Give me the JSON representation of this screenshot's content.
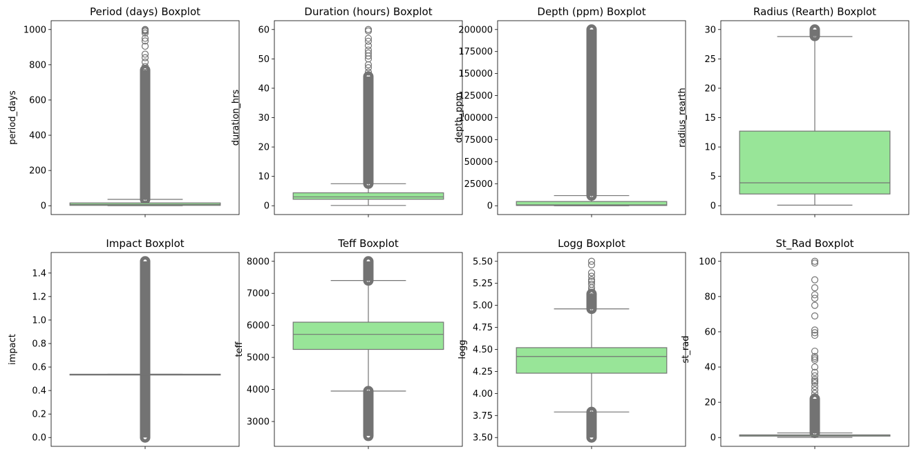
{
  "chart_data": [
    {
      "type": "boxplot",
      "title": "Period (days) Boxplot",
      "ylabel": "period_days",
      "ylim": [
        -50,
        1050
      ],
      "yticks": [
        0,
        200,
        400,
        600,
        800,
        1000
      ],
      "yticklabels": [
        "0",
        "200",
        "400",
        "600",
        "800",
        "1000"
      ],
      "box": {
        "whisker_low": 0.2,
        "q1": 2,
        "median": 7,
        "q3": 16,
        "whisker_high": 36
      },
      "outlier_band": [
        36,
        770
      ],
      "outliers": [
        790,
        815,
        840,
        860,
        905,
        935,
        950,
        980,
        990,
        995,
        1000
      ]
    },
    {
      "type": "boxplot",
      "title": "Duration (hours) Boxplot",
      "ylabel": "duration_hrs",
      "ylim": [
        -3,
        63
      ],
      "yticks": [
        0,
        10,
        20,
        30,
        40,
        50,
        60
      ],
      "yticklabels": [
        "0",
        "10",
        "20",
        "30",
        "40",
        "50",
        "60"
      ],
      "box": {
        "whisker_low": 0.1,
        "q1": 2.2,
        "median": 3.0,
        "q3": 4.4,
        "whisker_high": 7.5
      },
      "outlier_band": [
        7.5,
        44
      ],
      "outliers": [
        45.5,
        47,
        48,
        50,
        51,
        52,
        53,
        54.5,
        56,
        57,
        59.5,
        60
      ]
    },
    {
      "type": "boxplot",
      "title": "Depth (ppm) Boxplot",
      "ylabel": "depth_ppm",
      "ylim": [
        -10000,
        210000
      ],
      "yticks": [
        0,
        25000,
        50000,
        75000,
        100000,
        125000,
        150000,
        175000,
        200000
      ],
      "yticklabels": [
        "0",
        "25000",
        "50000",
        "75000",
        "100000",
        "125000",
        "150000",
        "175000",
        "200000"
      ],
      "box": {
        "whisker_low": 0,
        "q1": 300,
        "median": 1000,
        "q3": 4800,
        "whisker_high": 11500
      },
      "outlier_band": [
        11500,
        200000
      ],
      "outliers": []
    },
    {
      "type": "boxplot",
      "title": "Radius (Rearth) Boxplot",
      "ylabel": "radius_rearth",
      "ylim": [
        -1.5,
        31.5
      ],
      "yticks": [
        0,
        5,
        10,
        15,
        20,
        25,
        30
      ],
      "yticklabels": [
        "0",
        "5",
        "10",
        "15",
        "20",
        "25",
        "30"
      ],
      "box": {
        "whisker_low": 0.1,
        "q1": 2.0,
        "median": 3.9,
        "q3": 12.7,
        "whisker_high": 28.8
      },
      "outlier_band": [
        28.9,
        30
      ],
      "outliers": []
    },
    {
      "type": "boxplot",
      "title": "Impact Boxplot",
      "ylabel": "impact",
      "ylim": [
        -0.075,
        1.575
      ],
      "yticks": [
        0,
        0.2,
        0.4,
        0.6,
        0.8,
        1.0,
        1.2,
        1.4
      ],
      "yticklabels": [
        "0.0",
        "0.2",
        "0.4",
        "0.6",
        "0.8",
        "1.0",
        "1.2",
        "1.4"
      ],
      "box": {
        "whisker_low": 0.537,
        "q1": 0.537,
        "median": 0.537,
        "q3": 0.539,
        "whisker_high": 0.539
      },
      "outlier_band": [
        0,
        1.5
      ],
      "outliers": []
    },
    {
      "type": "boxplot",
      "title": "Teff Boxplot",
      "ylabel": "teff",
      "ylim": [
        2225,
        8275
      ],
      "yticks": [
        3000,
        4000,
        5000,
        6000,
        7000,
        8000
      ],
      "yticklabels": [
        "3000",
        "4000",
        "5000",
        "6000",
        "7000",
        "8000"
      ],
      "box": {
        "whisker_low": 3950,
        "q1": 5250,
        "median": 5720,
        "q3": 6100,
        "whisker_high": 7400
      },
      "outlier_band": [
        2550,
        3950
      ],
      "outlier_band_upper": [
        7400,
        8000
      ],
      "outliers": []
    },
    {
      "type": "boxplot",
      "title": "Logg Boxplot",
      "ylabel": "logg",
      "ylim": [
        3.4,
        5.6
      ],
      "yticks": [
        3.5,
        3.75,
        4.0,
        4.25,
        4.5,
        4.75,
        5.0,
        5.25,
        5.5
      ],
      "yticklabels": [
        "3.50",
        "3.75",
        "4.00",
        "4.25",
        "4.50",
        "4.75",
        "5.00",
        "5.25",
        "5.50"
      ],
      "box": {
        "whisker_low": 3.79,
        "q1": 4.23,
        "median": 4.42,
        "q3": 4.52,
        "whisker_high": 4.96
      },
      "outlier_band": [
        3.5,
        3.79
      ],
      "outlier_band_upper": [
        4.96,
        5.13
      ],
      "outliers": [
        5.17,
        5.2,
        5.24,
        5.27,
        5.29,
        5.33,
        5.37,
        5.46,
        5.5
      ]
    },
    {
      "type": "boxplot",
      "title": "St_Rad Boxplot",
      "ylabel": "st_rad",
      "ylim": [
        -5,
        105
      ],
      "yticks": [
        0,
        20,
        40,
        60,
        80,
        100
      ],
      "yticklabels": [
        "0",
        "20",
        "40",
        "60",
        "80",
        "100"
      ],
      "box": {
        "whisker_low": 0.1,
        "q1": 0.8,
        "median": 1.0,
        "q3": 1.5,
        "whisker_high": 2.6
      },
      "outlier_band": [
        2.6,
        22
      ],
      "outliers": [
        23,
        25,
        27,
        29,
        31,
        32,
        33,
        35,
        37,
        40,
        44,
        45,
        46,
        49,
        58,
        59.5,
        61,
        69,
        75,
        79,
        81,
        85,
        89.5,
        99,
        100
      ]
    }
  ],
  "colors": {
    "box_fill": "#98e598",
    "line": "#737373"
  }
}
